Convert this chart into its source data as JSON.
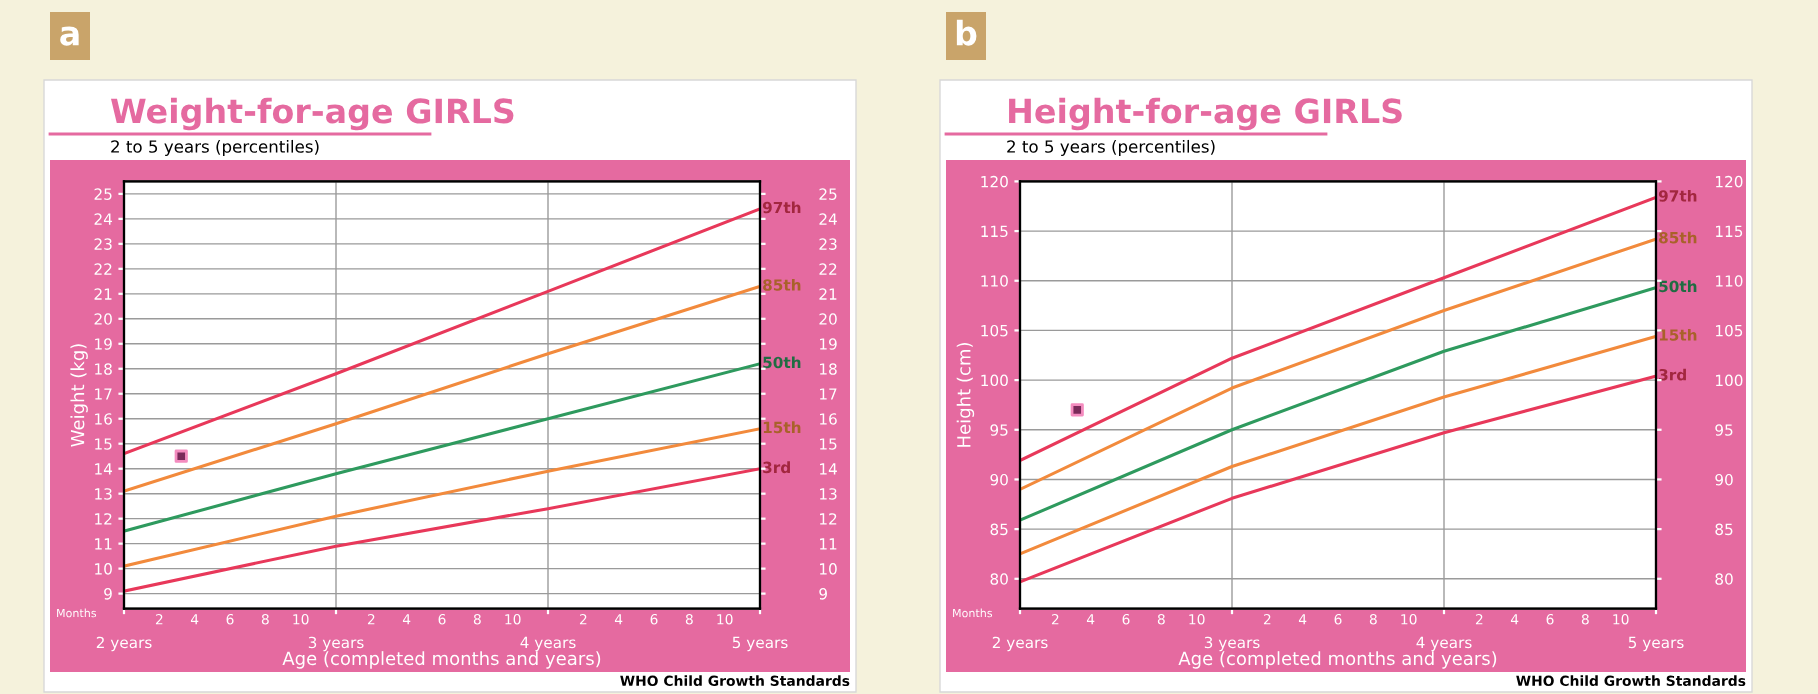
{
  "chart_data": [
    {
      "type": "line",
      "title": "Weight-for-age GIRLS",
      "subtitle": "2 to 5 years (percentiles)",
      "xlabel": "Age (completed months and years)",
      "ylabel": "Weight (kg)",
      "annotations": [
        "a",
        "Months",
        "WHO Child Growth Standards",
        "2",
        "4",
        "6",
        "8",
        "10",
        "2",
        "4",
        "6",
        "8",
        "10",
        "2",
        "4",
        "6",
        "8",
        "10"
      ],
      "xlim": [
        2,
        5
      ],
      "xticks": [
        {
          "value": 2,
          "label": "2 years"
        },
        {
          "value": 3,
          "label": "3 years"
        },
        {
          "value": 4,
          "label": "4 years"
        },
        {
          "value": 5,
          "label": "5 years"
        }
      ],
      "ylim": [
        8.4,
        25.5
      ],
      "yticks": [
        9,
        10,
        11,
        12,
        13,
        14,
        15,
        16,
        17,
        18,
        19,
        20,
        21,
        22,
        23,
        24,
        25
      ],
      "y2lim": [
        8.4,
        25.5
      ],
      "y2ticks": [
        9,
        10,
        11,
        12,
        13,
        14,
        15,
        16,
        17,
        18,
        19,
        20,
        21,
        22,
        23,
        24,
        25
      ],
      "grid": true,
      "legend": false,
      "marker": "none",
      "line_style": "solid",
      "x": [
        2,
        3,
        4,
        5
      ],
      "series": [
        {
          "name": "97th",
          "color": "#e8385a",
          "values": [
            14.6,
            17.8,
            21.1,
            24.4
          ]
        },
        {
          "name": "85th",
          "color": "#f28a3c",
          "values": [
            13.1,
            15.8,
            18.6,
            21.3
          ]
        },
        {
          "name": "50th",
          "color": "#2e9a5e",
          "values": [
            11.5,
            13.8,
            16.0,
            18.2
          ]
        },
        {
          "name": "15th",
          "color": "#f28a3c",
          "values": [
            10.1,
            12.1,
            13.9,
            15.6
          ]
        },
        {
          "name": "3rd",
          "color": "#e8385a",
          "values": [
            9.1,
            10.9,
            12.4,
            14.0
          ]
        },
        {
          "type": "scatter",
          "color": "#7a2a5a",
          "marker": "square",
          "x": [
            2.27
          ],
          "values": [
            14.5
          ]
        }
      ]
    },
    {
      "type": "line",
      "title": "Height-for-age GIRLS",
      "subtitle": "2 to 5 years (percentiles)",
      "xlabel": "Age (completed months and years)",
      "ylabel": "Height (cm)",
      "annotations": [
        "b",
        "Months",
        "WHO Child Growth Standards",
        "2",
        "4",
        "6",
        "8",
        "10",
        "2",
        "4",
        "6",
        "8",
        "10",
        "2",
        "4",
        "6",
        "8",
        "10"
      ],
      "xlim": [
        2,
        5
      ],
      "xticks": [
        {
          "value": 2,
          "label": "2 years"
        },
        {
          "value": 3,
          "label": "3 years"
        },
        {
          "value": 4,
          "label": "4 years"
        },
        {
          "value": 5,
          "label": "5 years"
        }
      ],
      "ylim": [
        77,
        120
      ],
      "yticks": [
        80,
        85,
        90,
        95,
        100,
        105,
        110,
        115,
        120
      ],
      "y2lim": [
        77,
        120
      ],
      "y2ticks": [
        80,
        85,
        90,
        95,
        100,
        105,
        110,
        115,
        120
      ],
      "grid": true,
      "legend": false,
      "marker": "none",
      "line_style": "solid",
      "x": [
        2,
        3,
        4,
        5
      ],
      "series": [
        {
          "name": "97th",
          "color": "#e8385a",
          "values": [
            91.9,
            102.2,
            110.3,
            118.4
          ]
        },
        {
          "name": "85th",
          "color": "#f28a3c",
          "values": [
            89.0,
            99.2,
            107.0,
            114.2
          ]
        },
        {
          "name": "50th",
          "color": "#2e9a5e",
          "values": [
            85.9,
            95.0,
            102.9,
            109.3
          ]
        },
        {
          "name": "15th",
          "color": "#f28a3c",
          "values": [
            82.5,
            91.3,
            98.3,
            104.4
          ]
        },
        {
          "name": "3rd",
          "color": "#e8385a",
          "values": [
            79.7,
            88.1,
            94.7,
            100.4
          ]
        },
        {
          "type": "scatter",
          "color": "#7a2a5a",
          "marker": "square",
          "x": [
            2.27
          ],
          "values": [
            97.0
          ]
        }
      ]
    }
  ]
}
